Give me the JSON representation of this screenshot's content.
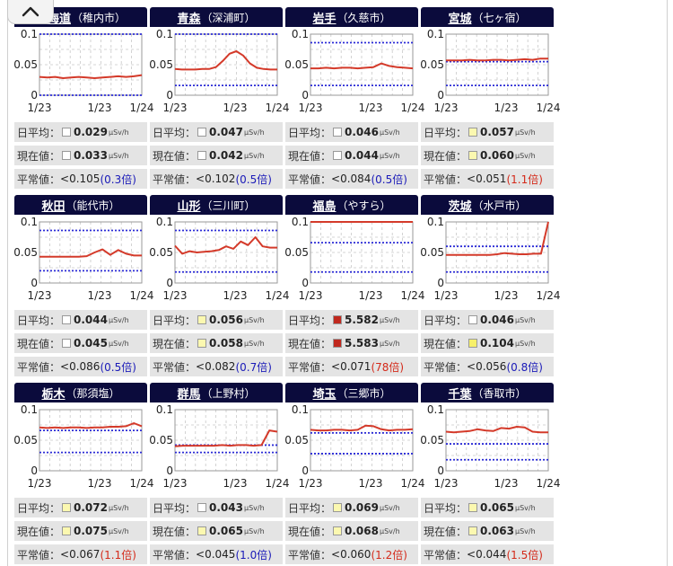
{
  "colors": {
    "header_bg": "#0b0b3c",
    "line": "#d43a2a",
    "band": "#2b2bd6",
    "box_white": "#ffffff",
    "box_yellow": "#fbf8b0",
    "box_bright_yellow": "#f7f06a",
    "box_red": "#c0281e",
    "ratio_low": "#1a1ab8",
    "ratio_high": "#d42a1a"
  },
  "ui": {
    "collapse_icon": "chevron-up-icon"
  },
  "labels": {
    "daily": "日平均：",
    "current": "現在値：",
    "normal": "平常値：",
    "unit": "μSv/h"
  },
  "stations": [
    {
      "pref": "北海道",
      "city": "（稚内市）",
      "y_ticks": [
        "0.1",
        "0.05",
        "0"
      ],
      "x_ticks": [
        "1/23",
        "1/23",
        "1/24"
      ],
      "band": [
        0.0,
        0.1
      ],
      "line": [
        0.03,
        0.029,
        0.03,
        0.028,
        0.029,
        0.03,
        0.029,
        0.028,
        0.029,
        0.03,
        0.031,
        0.03,
        0.031,
        0.033
      ],
      "daily": "0.029",
      "daily_box": "box_white",
      "current": "0.033",
      "current_box": "box_white",
      "normal": "<0.105",
      "ratio": "(0.3倍)",
      "ratio_color": "ratio_low"
    },
    {
      "pref": "青森",
      "city": "（深浦町）",
      "y_ticks": [
        "0.1",
        "0.05",
        "0"
      ],
      "x_ticks": [
        "1/23",
        "1/23",
        "1/24"
      ],
      "band": [
        0.016,
        0.1
      ],
      "line": [
        0.043,
        0.042,
        0.042,
        0.042,
        0.043,
        0.043,
        0.046,
        0.056,
        0.068,
        0.072,
        0.065,
        0.052,
        0.045,
        0.043,
        0.042,
        0.042
      ],
      "daily": "0.047",
      "daily_box": "box_white",
      "current": "0.042",
      "current_box": "box_white",
      "normal": "<0.102",
      "ratio": "(0.5倍)",
      "ratio_color": "ratio_low"
    },
    {
      "pref": "岩手",
      "city": "（久慈市）",
      "y_ticks": [
        "0.1",
        "0.05",
        "0"
      ],
      "x_ticks": [
        "1/23",
        "1/23",
        "1/24"
      ],
      "band": [
        0.016,
        0.086
      ],
      "line": [
        0.044,
        0.044,
        0.045,
        0.044,
        0.045,
        0.045,
        0.044,
        0.045,
        0.046,
        0.052,
        0.048,
        0.046,
        0.045,
        0.044
      ],
      "daily": "0.046",
      "daily_box": "box_white",
      "current": "0.044",
      "current_box": "box_white",
      "normal": "<0.084",
      "ratio": "(0.5倍)",
      "ratio_color": "ratio_low"
    },
    {
      "pref": "宮城",
      "city": "（七ヶ宿）",
      "y_ticks": [
        "0.1",
        "0.05",
        "0"
      ],
      "x_ticks": [
        "1/23",
        "1/23",
        "1/24"
      ],
      "band": [
        0.016,
        0.055
      ],
      "line": [
        0.057,
        0.057,
        0.057,
        0.058,
        0.057,
        0.057,
        0.058,
        0.058,
        0.057,
        0.058,
        0.059,
        0.058,
        0.06,
        0.06
      ],
      "daily": "0.057",
      "daily_box": "box_yellow",
      "current": "0.060",
      "current_box": "box_yellow",
      "normal": "<0.051",
      "ratio": "(1.1倍)",
      "ratio_color": "ratio_high"
    },
    {
      "pref": "秋田",
      "city": "（能代市）",
      "y_ticks": [
        "0.1",
        "0.05",
        "0"
      ],
      "x_ticks": [
        "1/23",
        "1/23",
        "1/24"
      ],
      "band": [
        0.02,
        0.086
      ],
      "line": [
        0.043,
        0.043,
        0.043,
        0.043,
        0.043,
        0.043,
        0.044,
        0.05,
        0.055,
        0.046,
        0.054,
        0.048,
        0.045,
        0.045
      ],
      "daily": "0.044",
      "daily_box": "box_white",
      "current": "0.045",
      "current_box": "box_white",
      "normal": "<0.086",
      "ratio": "(0.5倍)",
      "ratio_color": "ratio_low"
    },
    {
      "pref": "山形",
      "city": "（三川町）",
      "y_ticks": [
        "0.1",
        "0.05",
        "0"
      ],
      "x_ticks": [
        "1/23",
        "1/23",
        "1/24"
      ],
      "band": [
        0.018,
        0.086
      ],
      "line": [
        0.061,
        0.048,
        0.052,
        0.05,
        0.051,
        0.052,
        0.054,
        0.06,
        0.056,
        0.068,
        0.062,
        0.075,
        0.06,
        0.058,
        0.058
      ],
      "daily": "0.056",
      "daily_box": "box_yellow",
      "current": "0.058",
      "current_box": "box_yellow",
      "normal": "<0.082",
      "ratio": "(0.7倍)",
      "ratio_color": "ratio_low"
    },
    {
      "pref": "福島",
      "city": "（やすら）",
      "y_ticks": [
        "0.1",
        "0.05",
        "0"
      ],
      "x_ticks": [
        "1/23",
        "1/23",
        "1/24"
      ],
      "band": [
        0.018,
        0.066
      ],
      "line": [
        0.1,
        0.1,
        0.1,
        0.1,
        0.1,
        0.1,
        0.1,
        0.1,
        0.1,
        0.1,
        0.1,
        0.1,
        0.1,
        0.1
      ],
      "daily": "5.582",
      "daily_box": "box_red",
      "current": "5.583",
      "current_box": "box_red",
      "normal": "<0.071",
      "ratio": "(78倍)",
      "ratio_color": "ratio_high"
    },
    {
      "pref": "茨城",
      "city": "（水戸市）",
      "y_ticks": [
        "0.1",
        "0.05",
        "0"
      ],
      "x_ticks": [
        "1/23",
        "1/23",
        "1/24"
      ],
      "band": [
        0.018,
        0.06
      ],
      "line": [
        0.046,
        0.046,
        0.046,
        0.046,
        0.046,
        0.046,
        0.046,
        0.047,
        0.049,
        0.048,
        0.047,
        0.047,
        0.048,
        0.048,
        0.1
      ],
      "daily": "0.046",
      "daily_box": "box_white",
      "current": "0.104",
      "current_box": "box_bright_yellow",
      "normal": "<0.056",
      "ratio": "(0.8倍)",
      "ratio_color": "ratio_low"
    },
    {
      "pref": "栃木",
      "city": "（那須塩）",
      "y_ticks": [
        "0.1",
        "0.05",
        "0"
      ],
      "x_ticks": [
        "1/23",
        "1/23",
        "1/24"
      ],
      "band": [
        0.03,
        0.066
      ],
      "line": [
        0.071,
        0.07,
        0.071,
        0.07,
        0.071,
        0.071,
        0.07,
        0.071,
        0.071,
        0.072,
        0.072,
        0.073,
        0.078,
        0.073
      ],
      "daily": "0.072",
      "daily_box": "box_yellow",
      "current": "0.075",
      "current_box": "box_yellow",
      "normal": "<0.067",
      "ratio": "(1.1倍)",
      "ratio_color": "ratio_high"
    },
    {
      "pref": "群馬",
      "city": "（上野村）",
      "y_ticks": [
        "0.1",
        "0.05",
        "0"
      ],
      "x_ticks": [
        "1/23",
        "1/23",
        "1/24"
      ],
      "band": [
        0.03,
        0.042
      ],
      "line": [
        0.04,
        0.041,
        0.041,
        0.041,
        0.041,
        0.041,
        0.042,
        0.041,
        0.042,
        0.042,
        0.041,
        0.042,
        0.066,
        0.064
      ],
      "daily": "0.043",
      "daily_box": "box_white",
      "current": "0.065",
      "current_box": "box_yellow",
      "normal": "<0.045",
      "ratio": "(1.0倍)",
      "ratio_color": "ratio_low"
    },
    {
      "pref": "埼玉",
      "city": "（三郷市）",
      "y_ticks": [
        "0.1",
        "0.05",
        "0"
      ],
      "x_ticks": [
        "1/23",
        "1/23",
        "1/24"
      ],
      "band": [
        0.028,
        0.062
      ],
      "line": [
        0.067,
        0.066,
        0.066,
        0.067,
        0.067,
        0.066,
        0.067,
        0.074,
        0.073,
        0.068,
        0.066,
        0.067,
        0.067,
        0.068
      ],
      "daily": "0.069",
      "daily_box": "box_yellow",
      "current": "0.068",
      "current_box": "box_yellow",
      "normal": "<0.060",
      "ratio": "(1.2倍)",
      "ratio_color": "ratio_high"
    },
    {
      "pref": "千葉",
      "city": "（香取市）",
      "y_ticks": [
        "0.1",
        "0.05",
        "0"
      ],
      "x_ticks": [
        "1/23",
        "1/23",
        "1/24"
      ],
      "band": [
        0.018,
        0.044
      ],
      "line": [
        0.064,
        0.063,
        0.064,
        0.065,
        0.068,
        0.066,
        0.065,
        0.07,
        0.069,
        0.072,
        0.071,
        0.064,
        0.063,
        0.063
      ],
      "daily": "0.065",
      "daily_box": "box_yellow",
      "current": "0.063",
      "current_box": "box_yellow",
      "normal": "<0.044",
      "ratio": "(1.5倍)",
      "ratio_color": "ratio_high"
    }
  ]
}
